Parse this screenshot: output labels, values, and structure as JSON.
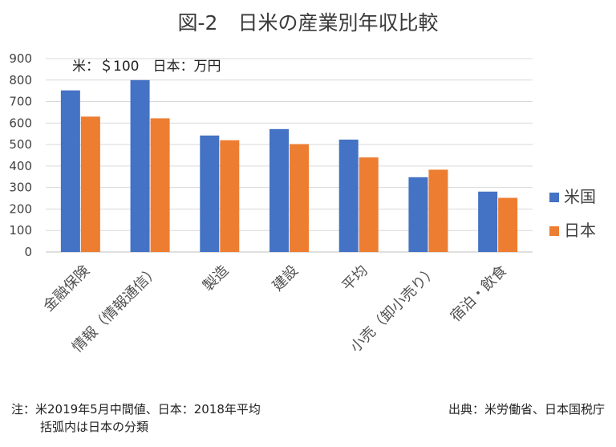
{
  "chart_data": {
    "type": "bar",
    "title": "図-2　日米の産業別年収比較",
    "unit_note": "米：＄100　日本：万円",
    "categories": [
      "金融保険",
      "情報（情報通信）",
      "製造",
      "建設",
      "平均",
      "小売（卸小売り）",
      "宿泊・飲食"
    ],
    "series": [
      {
        "name": "米国",
        "color": "#4472C4",
        "values": [
          752,
          800,
          542,
          572,
          523,
          348,
          281
        ]
      },
      {
        "name": "日本",
        "color": "#ED7D31",
        "values": [
          630,
          622,
          520,
          502,
          440,
          383,
          252
        ]
      }
    ],
    "ylim": [
      0,
      900
    ],
    "yticks": [
      0,
      100,
      200,
      300,
      400,
      500,
      600,
      700,
      800,
      900
    ],
    "grid": true,
    "legend": "right"
  },
  "footnote_1": "注：米2019年5月中間値、日本：2018年平均",
  "footnote_2": "括弧内は日本の分類",
  "source": "出典：米労働省、日本国税庁"
}
